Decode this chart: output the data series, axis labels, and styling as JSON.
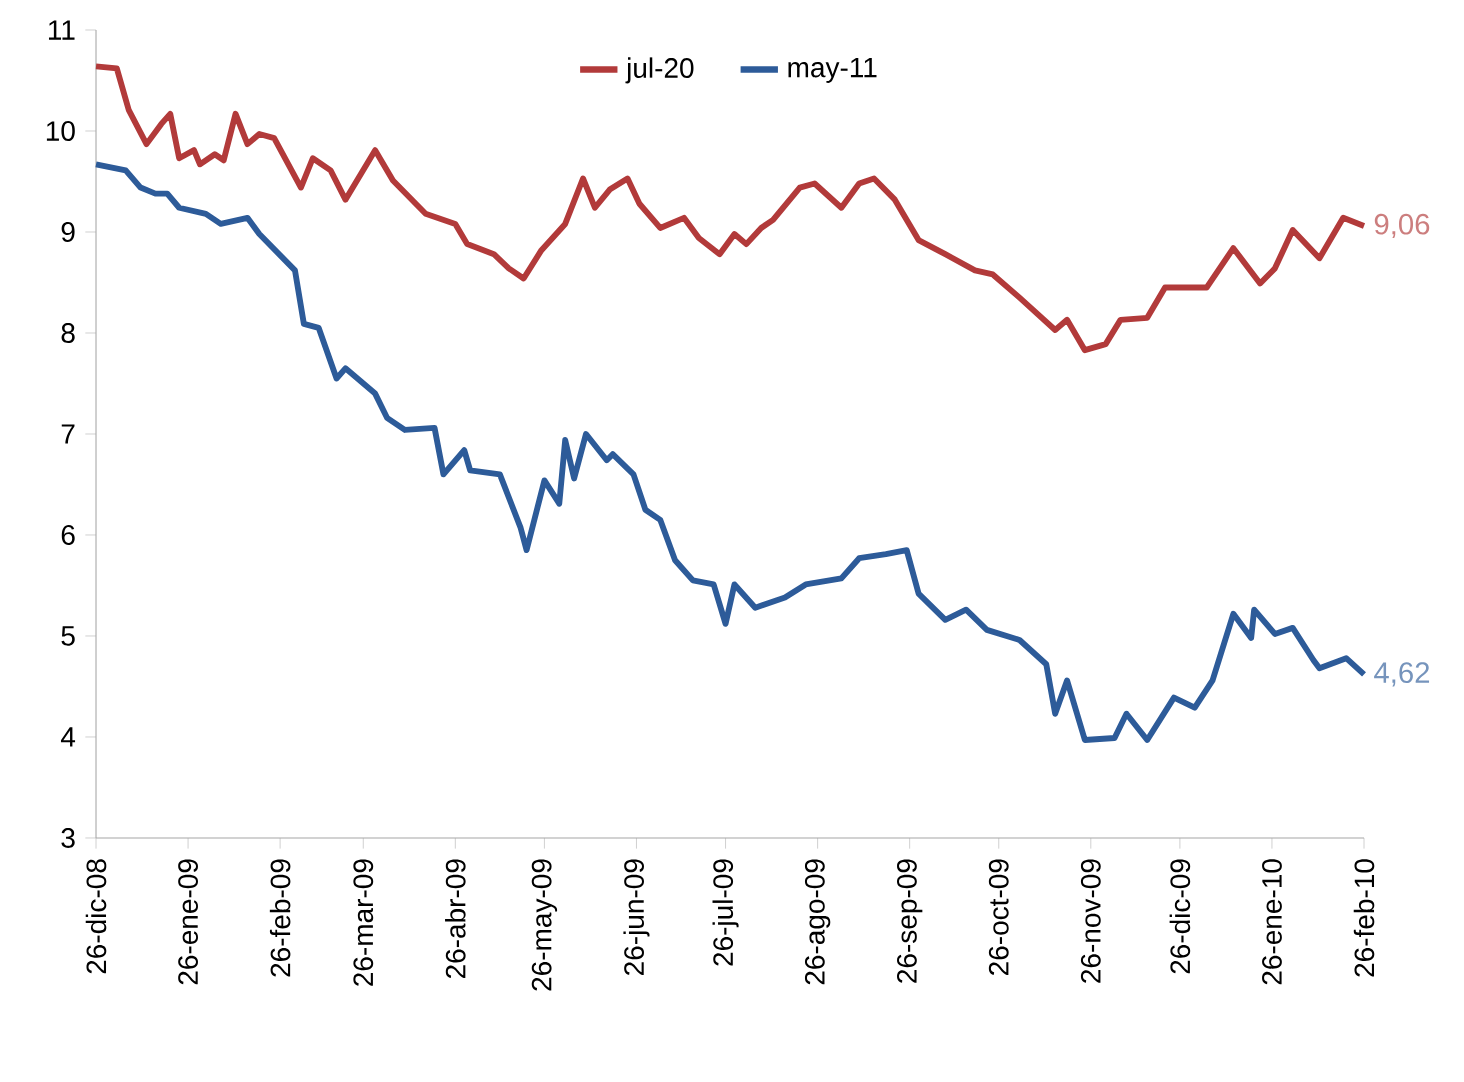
{
  "chart_data": {
    "type": "line",
    "xlim": [
      "2008-12-26",
      "2010-02-26"
    ],
    "ylim": [
      3,
      11
    ],
    "yticks": [
      3,
      4,
      5,
      6,
      7,
      8,
      9,
      10,
      11
    ],
    "xticks": [
      {
        "value": "2008-12-26",
        "label": "26-dic-08"
      },
      {
        "value": "2009-01-26",
        "label": "26-ene-09"
      },
      {
        "value": "2009-02-26",
        "label": "26-feb-09"
      },
      {
        "value": "2009-03-26",
        "label": "26-mar-09"
      },
      {
        "value": "2009-04-26",
        "label": "26-abr-09"
      },
      {
        "value": "2009-05-26",
        "label": "26-may-09"
      },
      {
        "value": "2009-06-26",
        "label": "26-jun-09"
      },
      {
        "value": "2009-07-26",
        "label": "26-jul-09"
      },
      {
        "value": "2009-08-26",
        "label": "26-ago-09"
      },
      {
        "value": "2009-09-26",
        "label": "26-sep-09"
      },
      {
        "value": "2009-10-26",
        "label": "26-oct-09"
      },
      {
        "value": "2009-11-26",
        "label": "26-nov-09"
      },
      {
        "value": "2009-12-26",
        "label": "26-dic-09"
      },
      {
        "value": "2010-01-26",
        "label": "26-ene-10"
      },
      {
        "value": "2010-02-26",
        "label": "26-feb-10"
      }
    ],
    "legend": "top",
    "grid": false,
    "series": [
      {
        "name": "jul-20",
        "color": "#b23a3a",
        "x": [
          "2008-12-26",
          "2009-01-02",
          "2009-01-06",
          "2009-01-12",
          "2009-01-17",
          "2009-01-20",
          "2009-01-23",
          "2009-01-28",
          "2009-01-30",
          "2009-02-04",
          "2009-02-07",
          "2009-02-11",
          "2009-02-15",
          "2009-02-19",
          "2009-02-24",
          "2009-03-05",
          "2009-03-09",
          "2009-03-15",
          "2009-03-20",
          "2009-03-30",
          "2009-04-05",
          "2009-04-16",
          "2009-04-26",
          "2009-04-30",
          "2009-05-09",
          "2009-05-14",
          "2009-05-19",
          "2009-05-25",
          "2009-06-02",
          "2009-06-08",
          "2009-06-12",
          "2009-06-17",
          "2009-06-23",
          "2009-06-27",
          "2009-07-04",
          "2009-07-12",
          "2009-07-17",
          "2009-07-24",
          "2009-07-29",
          "2009-08-02",
          "2009-08-07",
          "2009-08-11",
          "2009-08-20",
          "2009-08-25",
          "2009-09-03",
          "2009-09-09",
          "2009-09-14",
          "2009-09-21",
          "2009-09-29",
          "2009-10-08",
          "2009-10-18",
          "2009-10-24",
          "2009-11-02",
          "2009-11-14",
          "2009-11-18",
          "2009-11-24",
          "2009-12-01",
          "2009-12-06",
          "2009-12-15",
          "2009-12-21",
          "2009-12-28",
          "2010-01-04",
          "2010-01-13",
          "2010-01-22",
          "2010-01-27",
          "2010-02-02",
          "2010-02-11",
          "2010-02-19",
          "2010-02-26"
        ],
        "values": [
          10.64,
          10.62,
          10.21,
          9.87,
          10.07,
          10.17,
          9.73,
          9.81,
          9.67,
          9.77,
          9.71,
          10.17,
          9.87,
          9.97,
          9.93,
          9.44,
          9.73,
          9.61,
          9.32,
          9.81,
          9.51,
          9.18,
          9.08,
          8.88,
          8.78,
          8.64,
          8.54,
          8.82,
          9.08,
          9.53,
          9.24,
          9.42,
          9.53,
          9.28,
          9.04,
          9.14,
          8.94,
          8.78,
          8.98,
          8.88,
          9.04,
          9.12,
          9.44,
          9.48,
          9.24,
          9.48,
          9.53,
          9.32,
          8.92,
          8.78,
          8.62,
          8.58,
          8.35,
          8.03,
          8.13,
          7.83,
          7.89,
          8.13,
          8.15,
          8.45,
          8.45,
          8.45,
          8.84,
          8.49,
          8.64,
          9.02,
          8.74,
          9.14,
          9.06
        ]
      },
      {
        "name": "may-11",
        "color": "#2d5b99",
        "x": [
          "2008-12-26",
          "2009-01-05",
          "2009-01-10",
          "2009-01-15",
          "2009-01-19",
          "2009-01-23",
          "2009-02-01",
          "2009-02-06",
          "2009-02-15",
          "2009-02-19",
          "2009-03-03",
          "2009-03-06",
          "2009-03-11",
          "2009-03-17",
          "2009-03-20",
          "2009-03-30",
          "2009-04-03",
          "2009-04-09",
          "2009-04-19",
          "2009-04-22",
          "2009-04-29",
          "2009-05-01",
          "2009-05-11",
          "2009-05-18",
          "2009-05-20",
          "2009-05-26",
          "2009-05-31",
          "2009-06-02",
          "2009-06-05",
          "2009-06-09",
          "2009-06-16",
          "2009-06-18",
          "2009-06-25",
          "2009-06-29",
          "2009-07-04",
          "2009-07-09",
          "2009-07-15",
          "2009-07-22",
          "2009-07-26",
          "2009-07-29",
          "2009-08-05",
          "2009-08-15",
          "2009-08-22",
          "2009-09-03",
          "2009-09-09",
          "2009-09-18",
          "2009-09-25",
          "2009-09-29",
          "2009-10-08",
          "2009-10-15",
          "2009-10-22",
          "2009-11-02",
          "2009-11-11",
          "2009-11-14",
          "2009-11-18",
          "2009-11-24",
          "2009-12-04",
          "2009-12-08",
          "2009-12-15",
          "2009-12-24",
          "2009-12-31",
          "2010-01-06",
          "2010-01-13",
          "2010-01-19",
          "2010-01-20",
          "2010-01-27",
          "2010-02-02",
          "2010-02-09",
          "2010-02-11",
          "2010-02-20",
          "2010-02-26"
        ],
        "values": [
          9.67,
          9.61,
          9.44,
          9.38,
          9.38,
          9.24,
          9.18,
          9.08,
          9.14,
          8.98,
          8.62,
          8.09,
          8.05,
          7.55,
          7.65,
          7.4,
          7.16,
          7.04,
          7.06,
          6.6,
          6.84,
          6.64,
          6.6,
          6.07,
          5.85,
          6.54,
          6.31,
          6.94,
          6.56,
          7.0,
          6.74,
          6.8,
          6.6,
          6.25,
          6.15,
          5.75,
          5.55,
          5.51,
          5.12,
          5.51,
          5.28,
          5.38,
          5.51,
          5.57,
          5.77,
          5.81,
          5.85,
          5.42,
          5.16,
          5.26,
          5.06,
          4.96,
          4.72,
          4.23,
          4.56,
          3.97,
          3.99,
          4.23,
          3.97,
          4.39,
          4.29,
          4.56,
          5.22,
          4.98,
          5.26,
          5.02,
          5.08,
          4.76,
          4.68,
          4.78,
          4.62
        ]
      }
    ],
    "annotations": [
      {
        "text": "9,06",
        "x": "2010-02-26",
        "y": 9.06
      },
      {
        "text": "4,62",
        "x": "2010-02-26",
        "y": 4.62
      }
    ]
  }
}
